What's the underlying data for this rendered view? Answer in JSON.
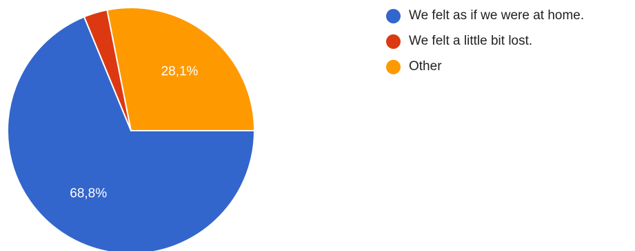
{
  "chart_data": {
    "type": "pie",
    "title": "",
    "categories": [
      "We felt as if we were at home.",
      "We felt a little bit lost.",
      "Other"
    ],
    "values": [
      68.8,
      3.1,
      28.1
    ],
    "value_labels": [
      "68,8%",
      "",
      "28,1%"
    ],
    "colors": [
      "#3366cc",
      "#dc3912",
      "#ff9900"
    ],
    "start_angle_deg": 0,
    "direction": "clockwise-from-east",
    "legend": "right-top"
  }
}
